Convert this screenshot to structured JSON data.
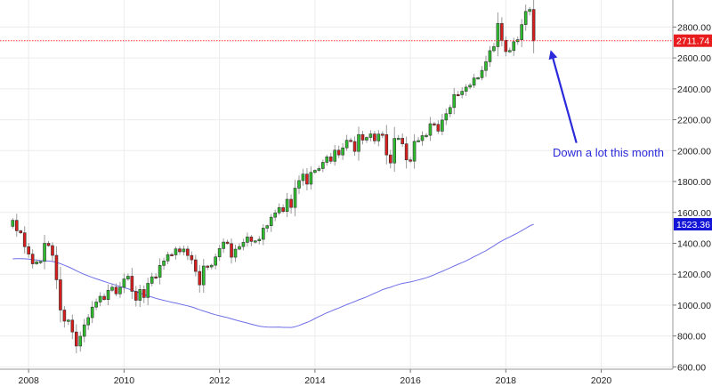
{
  "chart_data": {
    "type": "candlestick",
    "xlim": [
      2007.4,
      2021.5
    ],
    "ylim": [
      585,
      2975
    ],
    "grid": true,
    "x_ticks": [
      {
        "value": 2008,
        "label": "2008"
      },
      {
        "value": 2010,
        "label": "2010"
      },
      {
        "value": 2012,
        "label": "2012"
      },
      {
        "value": 2014,
        "label": "2014"
      },
      {
        "value": 2016,
        "label": "2016"
      },
      {
        "value": 2018,
        "label": "2018"
      },
      {
        "value": 2020,
        "label": "2020"
      }
    ],
    "y_ticks": [
      {
        "value": 600,
        "label": "600.00"
      },
      {
        "value": 800,
        "label": "800.00"
      },
      {
        "value": 1000,
        "label": "1000.00"
      },
      {
        "value": 1200,
        "label": "1200.00"
      },
      {
        "value": 1400,
        "label": "1400.00"
      },
      {
        "value": 1600,
        "label": "1600.00"
      },
      {
        "value": 1800,
        "label": "1800.00"
      },
      {
        "value": 2000,
        "label": "2000.00"
      },
      {
        "value": 2200,
        "label": "2200.00"
      },
      {
        "value": 2400,
        "label": "2400.00"
      },
      {
        "value": 2600,
        "label": "2600.00"
      },
      {
        "value": 2800,
        "label": "2800.00"
      }
    ],
    "series": [
      {
        "kind": "ohlc",
        "up_color": "#2dbd2d",
        "down_color": "#d91c1c",
        "monthly_close": [
          1549,
          1481,
          1468,
          1378,
          1330,
          1267,
          1280,
          1283,
          1400,
          1385,
          1322,
          1164,
          968,
          896,
          903,
          826,
          735,
          798,
          872,
          919,
          987,
          1020,
          1057,
          1036,
          1096,
          1116,
          1073,
          1115,
          1169,
          1187,
          1089,
          1031,
          1101,
          1049,
          1141,
          1183,
          1180,
          1257,
          1286,
          1327,
          1325,
          1364,
          1345,
          1363,
          1321,
          1293,
          1218,
          1131,
          1253,
          1247,
          1258,
          1312,
          1366,
          1408,
          1398,
          1310,
          1362,
          1379,
          1406,
          1441,
          1412,
          1416,
          1426,
          1498,
          1514,
          1569,
          1597,
          1631,
          1606,
          1685,
          1632,
          1757,
          1806,
          1848,
          1783,
          1859,
          1872,
          1884,
          1924,
          1960,
          1931,
          2003,
          1972,
          2018,
          2067,
          2059,
          1995,
          2104,
          2068,
          2085,
          2108,
          2063,
          2107,
          2104,
          1972,
          1920,
          2079,
          2080,
          2044,
          1940,
          1932,
          2060,
          2065,
          2097,
          2099,
          2174,
          2170,
          2126,
          2198,
          2239,
          2279,
          2363,
          2362,
          2384,
          2411,
          2423,
          2470,
          2472,
          2519,
          2575,
          2647,
          2673,
          2823,
          2714,
          2641,
          2648,
          2705,
          2718,
          2816,
          2901,
          2914,
          2711
        ]
      },
      {
        "kind": "moving_average",
        "color": "#6f6fe8",
        "last_value": 1523.36
      }
    ],
    "horizontal_line": {
      "value": 2711.74,
      "color": "#ff3030"
    },
    "price_labels": [
      {
        "text": "2711.74",
        "value": 2711.74,
        "background": "#e81c1c"
      },
      {
        "text": "1523.36",
        "value": 1523.36,
        "background": "#1515d8"
      }
    ],
    "annotation": {
      "text": "Down a lot this month",
      "color": "#2a2adb",
      "arrow_from": [
        2019.48,
        2050
      ],
      "arrow_to": [
        2018.95,
        2640
      ]
    }
  }
}
